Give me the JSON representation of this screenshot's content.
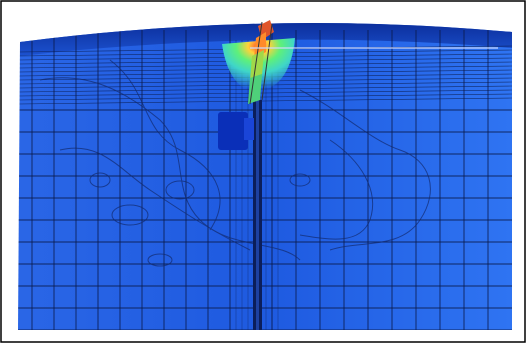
{
  "figure": {
    "description_kind": "fe-mesh-stress-contour",
    "colors": {
      "mesh_base": "#1f5fe0",
      "mesh_light": "#3a7cf0",
      "mesh_dark": "#0b2f9a",
      "grid_line": "#0a1a4a",
      "contour_line": "#122a6e",
      "stress_low": "#3fd6c8",
      "stress_mid": "#5ef07a",
      "stress_high": "#ffd23a",
      "stress_peak": "#ff4a2a",
      "border": "#000000"
    }
  }
}
